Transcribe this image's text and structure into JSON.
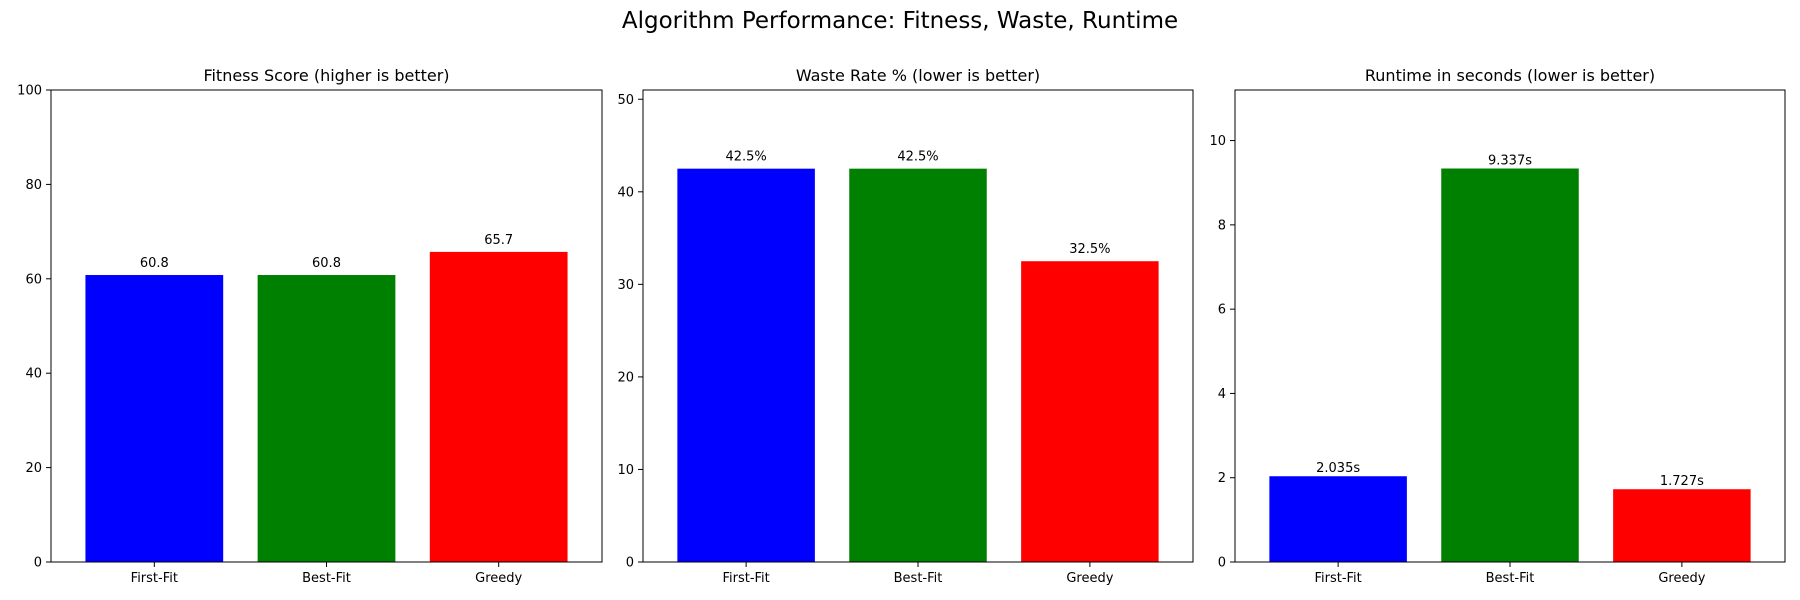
{
  "suptitle": "Algorithm Performance: Fitness, Waste, Runtime",
  "chart_data": [
    {
      "type": "bar",
      "title": "Fitness Score (higher is better)",
      "categories": [
        "First-Fit",
        "Best-Fit",
        "Greedy"
      ],
      "values": [
        60.8,
        60.8,
        65.7
      ],
      "value_labels": [
        "60.8",
        "60.8",
        "65.7"
      ],
      "colors": [
        "#0000ff",
        "#008000",
        "#ff0000"
      ],
      "ylim": [
        0,
        100
      ],
      "yticks": [
        0,
        20,
        40,
        60,
        80,
        100
      ],
      "xlabel": "",
      "ylabel": "",
      "grid": false
    },
    {
      "type": "bar",
      "title": "Waste Rate % (lower is better)",
      "categories": [
        "First-Fit",
        "Best-Fit",
        "Greedy"
      ],
      "values": [
        42.5,
        42.5,
        32.5
      ],
      "value_labels": [
        "42.5%",
        "42.5%",
        "32.5%"
      ],
      "colors": [
        "#0000ff",
        "#008000",
        "#ff0000"
      ],
      "ylim": [
        0,
        51
      ],
      "yticks": [
        0,
        10,
        20,
        30,
        40,
        50
      ],
      "xlabel": "",
      "ylabel": "",
      "grid": false
    },
    {
      "type": "bar",
      "title": "Runtime in seconds (lower is better)",
      "categories": [
        "First-Fit",
        "Best-Fit",
        "Greedy"
      ],
      "values": [
        2.035,
        9.337,
        1.727
      ],
      "value_labels": [
        "2.035s",
        "9.337s",
        "1.727s"
      ],
      "colors": [
        "#0000ff",
        "#008000",
        "#ff0000"
      ],
      "ylim": [
        0,
        11.2
      ],
      "yticks": [
        0,
        2,
        4,
        6,
        8,
        10
      ],
      "xlabel": "",
      "ylabel": "",
      "grid": false
    }
  ]
}
